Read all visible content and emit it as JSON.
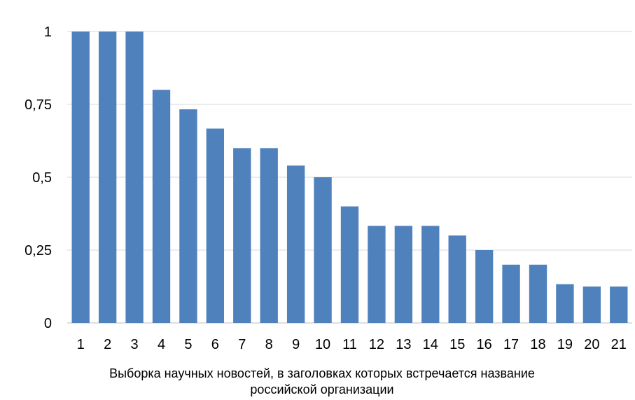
{
  "chart_data": {
    "type": "bar",
    "categories": [
      "1",
      "2",
      "3",
      "4",
      "5",
      "6",
      "7",
      "8",
      "9",
      "10",
      "11",
      "12",
      "13",
      "14",
      "15",
      "16",
      "17",
      "18",
      "19",
      "20",
      "21"
    ],
    "values": [
      1,
      1,
      1,
      0.8,
      0.733,
      0.667,
      0.6,
      0.6,
      0.54,
      0.5,
      0.4,
      0.333,
      0.333,
      0.333,
      0.3,
      0.25,
      0.2,
      0.2,
      0.133,
      0.125,
      0.125
    ],
    "yticks": [
      "0",
      "0,25",
      "0,5",
      "0,75",
      "1"
    ],
    "ytick_values": [
      0,
      0.25,
      0.5,
      0.75,
      1
    ],
    "ylim": [
      0,
      1
    ],
    "xlabel": [
      "Выборка научных новостей, в заголовках которых встречается название",
      "российской организации"
    ],
    "ylabel": "",
    "grid": true,
    "bar_color": "#4f81bd",
    "grid_color": "#d9d9d9"
  }
}
